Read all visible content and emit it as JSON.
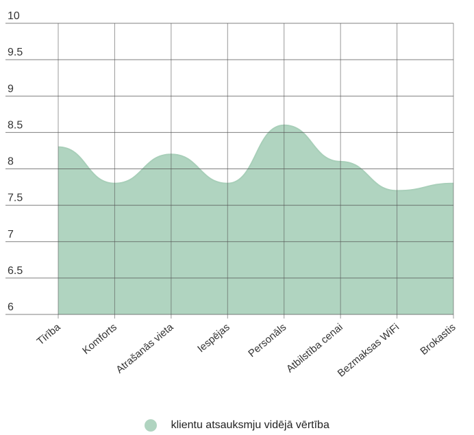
{
  "chart_data": {
    "type": "area",
    "categories": [
      "Tīrība",
      "Komforts",
      "Atrašanās vieta",
      "Iespējas",
      "Personāls",
      "Atbilstība cenai",
      "Bezmaksas WiFi",
      "Brokastis"
    ],
    "series": [
      {
        "name": "klientu atsauksmju vidējā vērtība",
        "values": [
          8.3,
          7.8,
          8.2,
          7.8,
          8.6,
          8.1,
          7.7,
          7.8
        ]
      }
    ],
    "ylim": [
      6,
      10
    ],
    "yticks": [
      "6",
      "6.5",
      "7",
      "7.5",
      "8",
      "8.5",
      "9",
      "9.5",
      "10"
    ],
    "grid": true,
    "legend_position": "bottom",
    "colors": {
      "fill": "#b0d4c0",
      "stroke": "#a8cfb9",
      "grid": "#555555"
    }
  }
}
